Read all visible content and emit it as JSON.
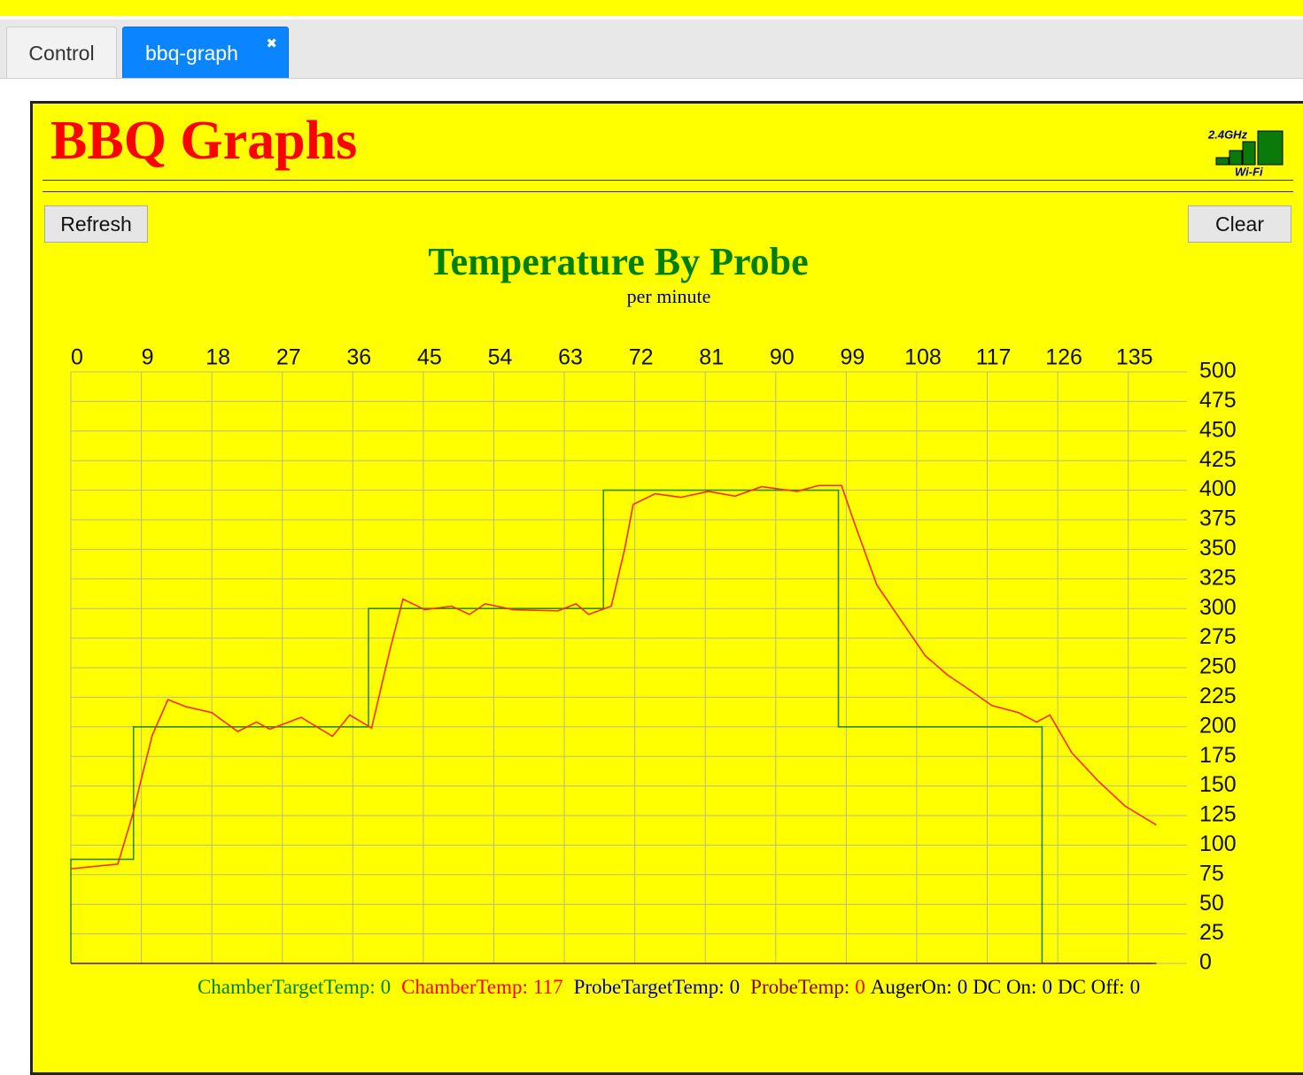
{
  "tabs": [
    {
      "label": "Control"
    },
    {
      "label": "bbq-graph",
      "close": "✖"
    }
  ],
  "header": {
    "title": "BBQ Graphs",
    "wifi_band": "2.4GHz",
    "wifi_label": "Wi-Fi"
  },
  "buttons": {
    "refresh": "Refresh",
    "clear": "Clear"
  },
  "chart_data": {
    "type": "line",
    "title": "Temperature By Probe",
    "subtitle": "per minute",
    "xlim": [
      0,
      142.5
    ],
    "xticks": [
      0,
      9,
      18,
      27,
      36,
      45,
      54,
      63,
      72,
      81,
      90,
      99,
      108,
      117,
      126,
      135
    ],
    "ylim": [
      0,
      500
    ],
    "yticks": [
      0,
      25,
      50,
      75,
      100,
      125,
      150,
      175,
      200,
      225,
      250,
      275,
      300,
      325,
      350,
      375,
      400,
      425,
      450,
      475,
      500
    ],
    "grid": true,
    "series": [
      {
        "color": "#2e8b1e",
        "x": [
          0,
          0,
          8,
          8,
          38,
          38,
          68,
          68,
          98,
          98,
          124,
          124,
          138
        ],
        "values": [
          0,
          88,
          88,
          200,
          200,
          300,
          300,
          400,
          400,
          200,
          200,
          0,
          0
        ]
      },
      {
        "color": "#ff2a00",
        "x": [
          0,
          6,
          7.9,
          9,
          10.4,
          12.4,
          14.7,
          18,
          21.3,
          23.7,
          25.4,
          29.4,
          33.4,
          35.6,
          38.4,
          40.7,
          42.4,
          45.2,
          48.6,
          50.9,
          52.9,
          56.5,
          62.2,
          64.5,
          66.1,
          69,
          70.7,
          71.8,
          74.6,
          77.9,
          81.4,
          84.8,
          88.2,
          92.7,
          95.5,
          98.4,
          100,
          102.9,
          106.3,
          109.1,
          111.9,
          114.8,
          117.6,
          121,
          123.3,
          125,
          127.8,
          131.2,
          134.6,
          138.6
        ],
        "values": [
          80,
          84,
          126,
          156,
          193,
          223,
          217,
          212,
          196,
          204,
          198,
          208,
          192,
          210,
          199,
          264,
          308,
          299,
          302,
          295,
          304,
          299,
          298,
          304,
          295,
          302,
          350,
          388,
          397,
          394,
          399,
          395,
          403,
          399,
          404,
          404,
          373,
          320,
          287,
          260,
          244,
          231,
          218,
          212,
          204,
          210,
          178,
          154,
          133,
          117
        ]
      },
      {
        "color": "#0000aa",
        "x": [
          0,
          138.6
        ],
        "values": [
          0,
          0
        ]
      },
      {
        "color": "#8b3a3a",
        "x": [
          0,
          138.6
        ],
        "values": [
          0,
          0
        ]
      }
    ],
    "legend": [
      {
        "label": "ChamberTargetTemp:",
        "value": 0,
        "label_color": "#008000",
        "value_color": "#008000"
      },
      {
        "label": "ChamberTemp:",
        "value": 117,
        "label_color": "#ff0000",
        "value_color": "#ff0000"
      },
      {
        "label": "ProbeTargetTemp:",
        "value": 0,
        "label_color": "#0000aa",
        "value_color": "#0000aa"
      },
      {
        "label": "ProbeTemp:",
        "value": 0,
        "label_color": "#8b0000",
        "value_color": "#ff0000"
      },
      {
        "label": "AugerOn:",
        "value": 0,
        "label_color": "#000000",
        "value_color": "#0000aa"
      },
      {
        "label": "DC On:",
        "value": 0,
        "label_color": "#000000",
        "value_color": "#0000aa"
      },
      {
        "label": "DC Off:",
        "value": 0,
        "label_color": "#000000",
        "value_color": "#0000aa"
      }
    ]
  }
}
